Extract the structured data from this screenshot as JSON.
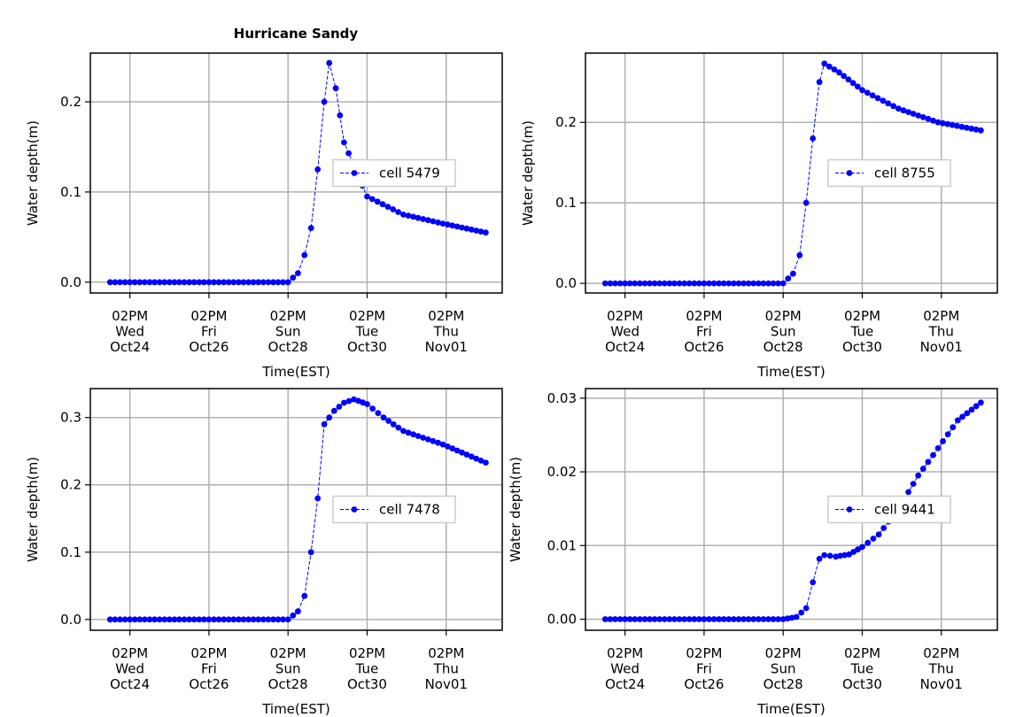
{
  "figure": {
    "title": "Hurricane Sandy",
    "colors": {
      "series": "#0000ff",
      "grid": "#b0b0b0",
      "axes": "#000000",
      "legend_border": "#cccccc"
    }
  },
  "chart_data": [
    {
      "type": "line",
      "title": "Hurricane Sandy",
      "xlabel": "Time(EST)",
      "ylabel": "Water depth(m)",
      "x_range": [
        "2012-10-23 14:00",
        "2012-11-03 00:00"
      ],
      "ylim": [
        -0.012,
        0.254
      ],
      "y_ticks": [
        0.0,
        0.1,
        0.2
      ],
      "y_tick_labels": [
        "0.0",
        "0.1",
        "0.2"
      ],
      "x_ticks": [
        "2012-10-24 14:00",
        "2012-10-26 14:00",
        "2012-10-28 14:00",
        "2012-10-30 14:00",
        "2012-11-01 14:00"
      ],
      "x_tick_labels": [
        [
          "02PM",
          "Wed",
          "Oct24"
        ],
        [
          "02PM",
          "Fri",
          "Oct26"
        ],
        [
          "02PM",
          "Sun",
          "Oct28"
        ],
        [
          "02PM",
          "Tue",
          "Oct30"
        ],
        [
          "02PM",
          "Thu",
          "Nov01"
        ]
      ],
      "grid": true,
      "legend": "center-right",
      "series": [
        {
          "name": "cell 5479",
          "points": [
            [
              "2012-10-24 02:00",
              0.0
            ],
            [
              "2012-10-28 14:00",
              0.0
            ],
            [
              "2012-10-28 20:00",
              0.01
            ],
            [
              "2012-10-29 00:00",
              0.03
            ],
            [
              "2012-10-29 04:00",
              0.06
            ],
            [
              "2012-10-29 08:00",
              0.125
            ],
            [
              "2012-10-29 12:00",
              0.2
            ],
            [
              "2012-10-29 15:00",
              0.243
            ],
            [
              "2012-10-29 19:00",
              0.215
            ],
            [
              "2012-10-30 00:00",
              0.155
            ],
            [
              "2012-10-30 14:00",
              0.095
            ],
            [
              "2012-10-31 12:00",
              0.075
            ],
            [
              "2012-11-01 12:00",
              0.065
            ],
            [
              "2012-11-02 14:00",
              0.055
            ]
          ]
        }
      ]
    },
    {
      "type": "line",
      "xlabel": "Time(EST)",
      "ylabel": "Water depth(m)",
      "x_range": [
        "2012-10-23 14:00",
        "2012-11-03 00:00"
      ],
      "ylim": [
        -0.012,
        0.286
      ],
      "y_ticks": [
        0.0,
        0.1,
        0.2
      ],
      "y_tick_labels": [
        "0.0",
        "0.1",
        "0.2"
      ],
      "x_ticks": [
        "2012-10-24 14:00",
        "2012-10-26 14:00",
        "2012-10-28 14:00",
        "2012-10-30 14:00",
        "2012-11-01 14:00"
      ],
      "x_tick_labels": [
        [
          "02PM",
          "Wed",
          "Oct24"
        ],
        [
          "02PM",
          "Fri",
          "Oct26"
        ],
        [
          "02PM",
          "Sun",
          "Oct28"
        ],
        [
          "02PM",
          "Tue",
          "Oct30"
        ],
        [
          "02PM",
          "Thu",
          "Nov01"
        ]
      ],
      "grid": true,
      "legend": "center-right",
      "series": [
        {
          "name": "cell 8755",
          "points": [
            [
              "2012-10-24 02:00",
              0.0
            ],
            [
              "2012-10-28 14:00",
              0.0
            ],
            [
              "2012-10-28 20:00",
              0.012
            ],
            [
              "2012-10-29 00:00",
              0.035
            ],
            [
              "2012-10-29 04:00",
              0.1
            ],
            [
              "2012-10-29 08:00",
              0.18
            ],
            [
              "2012-10-29 12:00",
              0.25
            ],
            [
              "2012-10-29 15:00",
              0.273
            ],
            [
              "2012-10-30 00:00",
              0.262
            ],
            [
              "2012-10-30 14:00",
              0.24
            ],
            [
              "2012-10-31 12:00",
              0.217
            ],
            [
              "2012-11-01 12:00",
              0.2
            ],
            [
              "2012-11-02 14:00",
              0.19
            ]
          ]
        }
      ]
    },
    {
      "type": "line",
      "xlabel": "Time(EST)",
      "ylabel": "Water depth(m)",
      "x_range": [
        "2012-10-23 14:00",
        "2012-11-03 00:00"
      ],
      "ylim": [
        -0.016,
        0.343
      ],
      "y_ticks": [
        0.0,
        0.1,
        0.2,
        0.3
      ],
      "y_tick_labels": [
        "0.0",
        "0.1",
        "0.2",
        "0.3"
      ],
      "x_ticks": [
        "2012-10-24 14:00",
        "2012-10-26 14:00",
        "2012-10-28 14:00",
        "2012-10-30 14:00",
        "2012-11-01 14:00"
      ],
      "x_tick_labels": [
        [
          "02PM",
          "Wed",
          "Oct24"
        ],
        [
          "02PM",
          "Fri",
          "Oct26"
        ],
        [
          "02PM",
          "Sun",
          "Oct28"
        ],
        [
          "02PM",
          "Tue",
          "Oct30"
        ],
        [
          "02PM",
          "Thu",
          "Nov01"
        ]
      ],
      "grid": true,
      "legend": "center-right",
      "series": [
        {
          "name": "cell 7478",
          "points": [
            [
              "2012-10-24 02:00",
              0.0
            ],
            [
              "2012-10-28 14:00",
              0.0
            ],
            [
              "2012-10-28 20:00",
              0.012
            ],
            [
              "2012-10-29 00:00",
              0.035
            ],
            [
              "2012-10-29 04:00",
              0.1
            ],
            [
              "2012-10-29 08:00",
              0.18
            ],
            [
              "2012-10-29 12:00",
              0.29
            ],
            [
              "2012-10-29 18:00",
              0.31
            ],
            [
              "2012-10-30 00:00",
              0.322
            ],
            [
              "2012-10-30 06:00",
              0.327
            ],
            [
              "2012-10-30 14:00",
              0.32
            ],
            [
              "2012-10-31 00:00",
              0.3
            ],
            [
              "2012-10-31 12:00",
              0.28
            ],
            [
              "2012-11-01 12:00",
              0.26
            ],
            [
              "2012-11-02 14:00",
              0.233
            ]
          ]
        }
      ]
    },
    {
      "type": "line",
      "xlabel": "Time(EST)",
      "ylabel": "Water depth(m)",
      "x_range": [
        "2012-10-23 14:00",
        "2012-11-03 00:00"
      ],
      "ylim": [
        -0.0015,
        0.0313
      ],
      "y_ticks": [
        0.0,
        0.01,
        0.02,
        0.03
      ],
      "y_tick_labels": [
        "0.00",
        "0.01",
        "0.02",
        "0.03"
      ],
      "x_ticks": [
        "2012-10-24 14:00",
        "2012-10-26 14:00",
        "2012-10-28 14:00",
        "2012-10-30 14:00",
        "2012-11-01 14:00"
      ],
      "x_tick_labels": [
        [
          "02PM",
          "Wed",
          "Oct24"
        ],
        [
          "02PM",
          "Fri",
          "Oct26"
        ],
        [
          "02PM",
          "Sun",
          "Oct28"
        ],
        [
          "02PM",
          "Tue",
          "Oct30"
        ],
        [
          "02PM",
          "Thu",
          "Nov01"
        ]
      ],
      "grid": true,
      "legend": "center-right",
      "series": [
        {
          "name": "cell 9441",
          "points": [
            [
              "2012-10-24 02:00",
              0.0
            ],
            [
              "2012-10-28 14:00",
              0.0
            ],
            [
              "2012-10-28 22:00",
              0.0003
            ],
            [
              "2012-10-29 04:00",
              0.0015
            ],
            [
              "2012-10-29 08:00",
              0.005
            ],
            [
              "2012-10-29 12:00",
              0.0082
            ],
            [
              "2012-10-29 15:00",
              0.0087
            ],
            [
              "2012-10-29 22:00",
              0.0085
            ],
            [
              "2012-10-30 06:00",
              0.0088
            ],
            [
              "2012-10-30 14:00",
              0.0098
            ],
            [
              "2012-10-31 00:00",
              0.0115
            ],
            [
              "2012-10-31 12:00",
              0.015
            ],
            [
              "2012-11-01 00:00",
              0.0195
            ],
            [
              "2012-11-01 12:00",
              0.0232
            ],
            [
              "2012-11-02 00:00",
              0.027
            ],
            [
              "2012-11-02 14:00",
              0.0294
            ]
          ]
        }
      ]
    }
  ]
}
